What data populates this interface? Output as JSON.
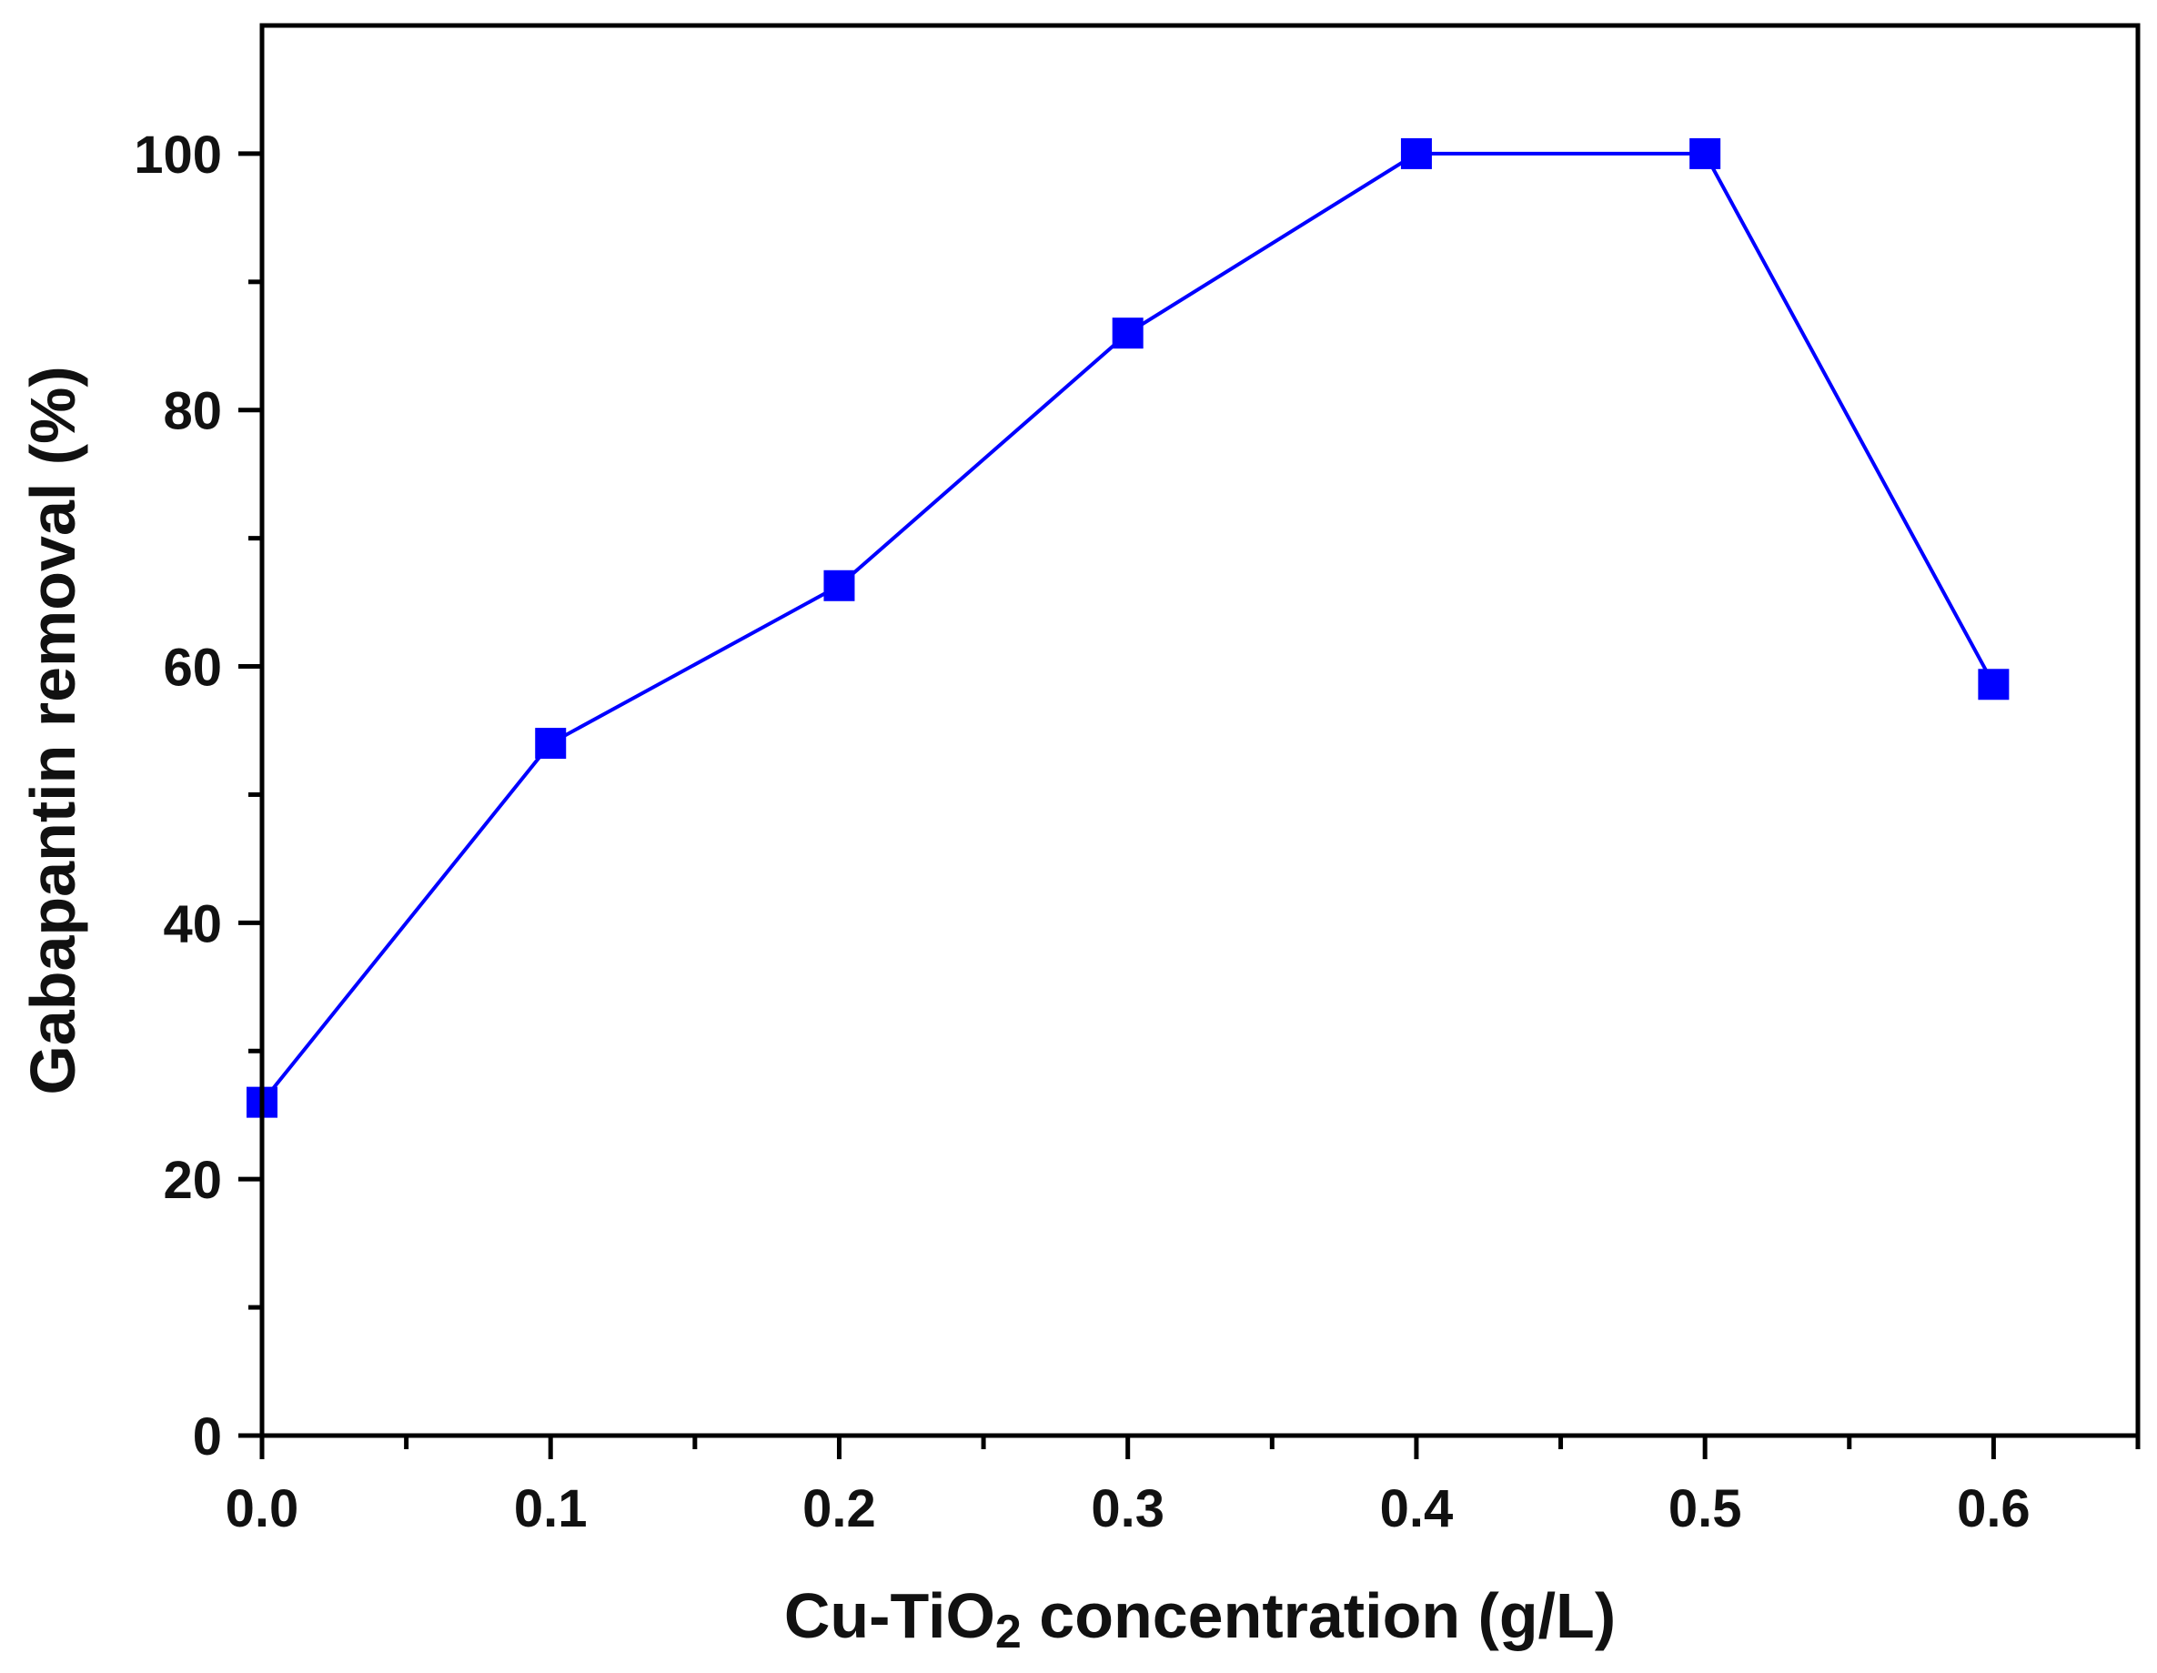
{
  "chart_data": {
    "type": "line",
    "x": [
      0.0,
      0.1,
      0.2,
      0.3,
      0.4,
      0.5,
      0.6
    ],
    "series": [
      {
        "values": [
          26,
          54,
          66.3,
          86,
          100,
          100,
          58.6
        ],
        "color": "#0000FF",
        "marker": "square"
      }
    ],
    "xlabel": {
      "prefix": "Cu-TiO",
      "subscript": "2",
      "suffix": " concentration (g/L)"
    },
    "ylabel": "Gabapantin removal (%)",
    "xlim": [
      0,
      0.65
    ],
    "ylim": [
      0,
      110
    ],
    "xticks": [
      "0.0",
      "0.1",
      "0.2",
      "0.3",
      "0.4",
      "0.5",
      "0.6"
    ],
    "yticks": [
      "0",
      "20",
      "40",
      "60",
      "80",
      "100"
    ],
    "grid": false,
    "legend": "none"
  }
}
